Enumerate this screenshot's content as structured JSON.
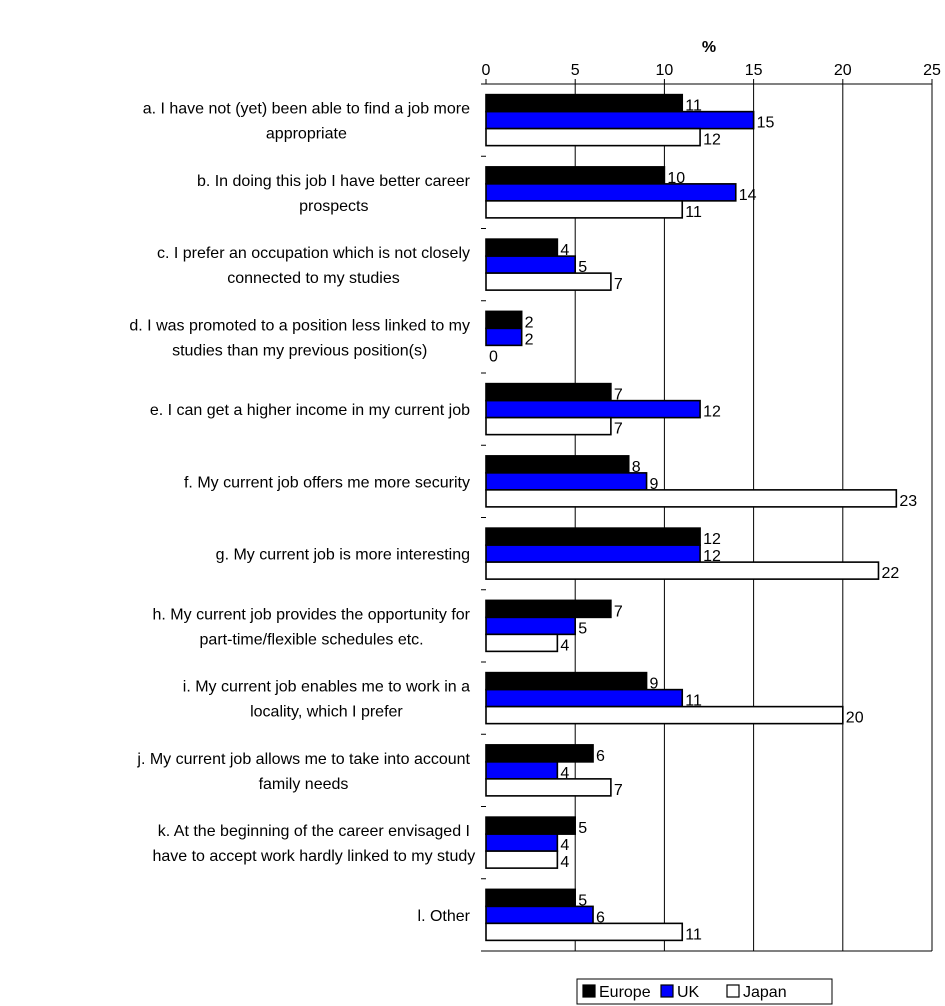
{
  "chart_data": {
    "type": "bar",
    "orientation": "horizontal",
    "axis_label": "%",
    "xlim": [
      0,
      25
    ],
    "x_ticks": [
      "0",
      "5",
      "10",
      "15",
      "20",
      "25"
    ],
    "grid": "vertical gridlines",
    "legend_position": "bottom-right",
    "categories": [
      [
        "a. I have not (yet) been able to find a job more",
        "appropriate"
      ],
      [
        "b. In doing this job I have better career",
        "prospects"
      ],
      [
        "c. I prefer an occupation which is not closely",
        "connected to my studies"
      ],
      [
        "d. I was promoted to a position less linked to my",
        "studies than my previous position(s)"
      ],
      [
        "e. I can get a higher income in my current job"
      ],
      [
        "f. My current job offers me more security"
      ],
      [
        "g. My current job is more interesting"
      ],
      [
        "h. My current job provides the opportunity for",
        "part-time/flexible schedules etc."
      ],
      [
        "i. My current job enables me to work in a",
        "locality, which I prefer"
      ],
      [
        "j. My current job allows me to take into account",
        "family needs"
      ],
      [
        "k. At the beginning of the career envisaged I",
        "have to accept work hardly linked to my study"
      ],
      [
        "l. Other"
      ]
    ],
    "series": [
      {
        "name": "Europe",
        "color": "#000000",
        "values": [
          11,
          10,
          4,
          2,
          7,
          8,
          12,
          7,
          9,
          6,
          5,
          5
        ]
      },
      {
        "name": "UK",
        "color": "#0000ff",
        "values": [
          15,
          14,
          5,
          2,
          12,
          9,
          12,
          5,
          11,
          4,
          4,
          6
        ]
      },
      {
        "name": "Japan",
        "color": "#ffffff",
        "values": [
          12,
          11,
          7,
          0,
          7,
          23,
          22,
          4,
          20,
          7,
          4,
          11
        ]
      }
    ]
  }
}
